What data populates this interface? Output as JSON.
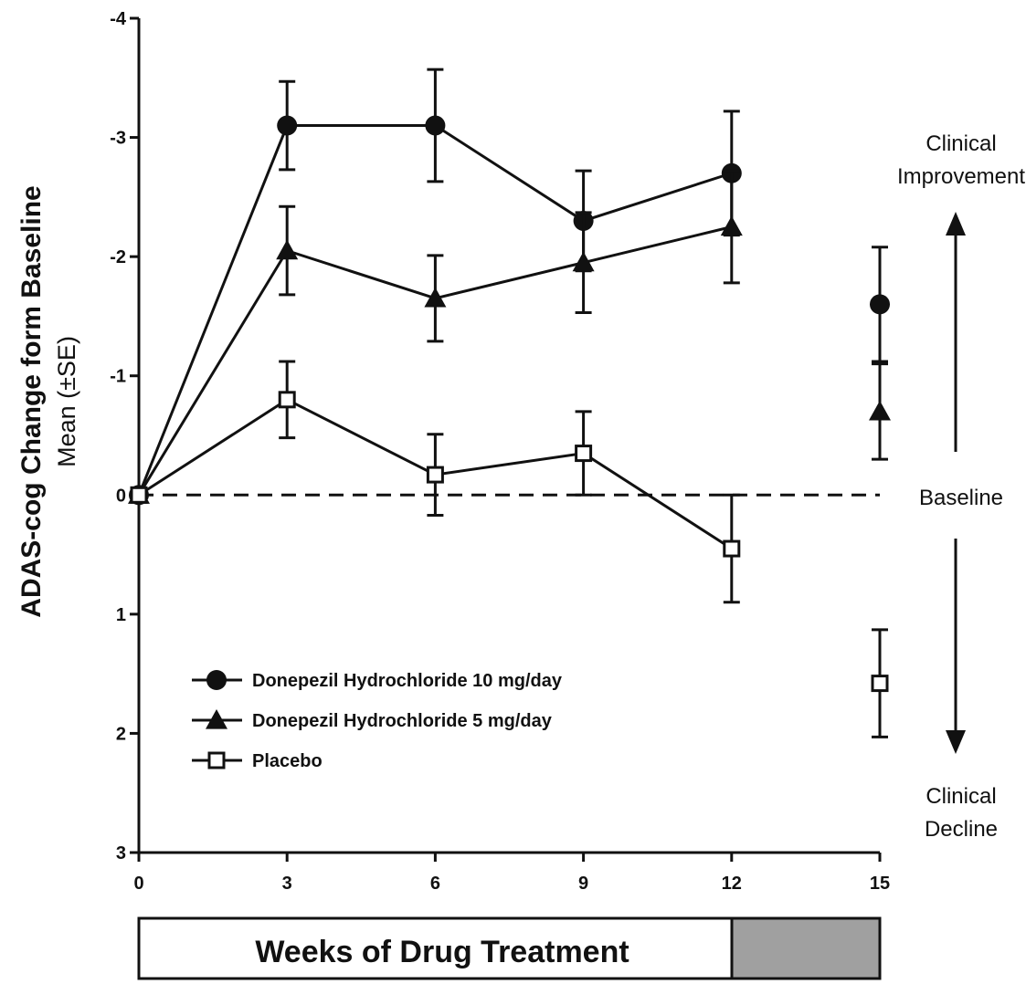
{
  "chart_data": {
    "type": "line",
    "title": "",
    "ylabel": "ADAS-cog Change form Baseline",
    "ylabel_sub": "Mean (±SE)",
    "xlabel": "Weeks of Drug Treatment",
    "x_ticks": [
      "0",
      "3",
      "6",
      "9",
      "12",
      "15"
    ],
    "y_ticks": [
      {
        "value": -4,
        "label": "-4"
      },
      {
        "value": -3,
        "label": "-3"
      },
      {
        "value": -2,
        "label": "-2"
      },
      {
        "value": -1,
        "label": "-1"
      },
      {
        "value": 0,
        "label": "0"
      },
      {
        "value": 1,
        "label": "1"
      },
      {
        "value": 2,
        "label": "2"
      },
      {
        "value": 3,
        "label": "3"
      }
    ],
    "xlim": [
      0,
      15
    ],
    "ylim": [
      -4,
      3
    ],
    "y_inverted": true,
    "grid": false,
    "legend_position": "lower-left",
    "series": [
      {
        "name": "Donepezil Hydrochloride 10 mg/day",
        "marker": "filled-circle",
        "points": [
          {
            "x": 0,
            "y": 0,
            "se": 0
          },
          {
            "x": 3,
            "y": -3.1,
            "se": 0.37
          },
          {
            "x": 6,
            "y": -3.1,
            "se": 0.47
          },
          {
            "x": 9,
            "y": -2.3,
            "se": 0.42
          },
          {
            "x": 12,
            "y": -2.7,
            "se": 0.52
          }
        ],
        "final": {
          "x": 15,
          "y": -1.6,
          "se": 0.48
        }
      },
      {
        "name": "Donepezil Hydrochloride 5 mg/day",
        "marker": "filled-triangle",
        "points": [
          {
            "x": 0,
            "y": 0,
            "se": 0
          },
          {
            "x": 3,
            "y": -2.05,
            "se": 0.37
          },
          {
            "x": 6,
            "y": -1.65,
            "se": 0.36
          },
          {
            "x": 9,
            "y": -1.95,
            "se": 0.42
          },
          {
            "x": 12,
            "y": -2.25,
            "se": 0.47
          }
        ],
        "final": {
          "x": 15,
          "y": -0.7,
          "se": 0.4
        }
      },
      {
        "name": "Placebo",
        "marker": "open-square",
        "points": [
          {
            "x": 0,
            "y": 0,
            "se": 0
          },
          {
            "x": 3,
            "y": -0.8,
            "se": 0.32
          },
          {
            "x": 6,
            "y": -0.17,
            "se": 0.34
          },
          {
            "x": 9,
            "y": -0.35,
            "se": 0.35
          },
          {
            "x": 12,
            "y": 0.45,
            "se": 0.45
          }
        ],
        "final": {
          "x": 15,
          "y": 1.58,
          "se": 0.45
        }
      }
    ],
    "baseline": {
      "y": 0,
      "style": "dashed"
    },
    "annotations": {
      "improvement": [
        "Clinical",
        "Improvement"
      ],
      "baseline": "Baseline",
      "decline": [
        "Clinical",
        "Decline"
      ]
    },
    "colors": {
      "line": "#111111",
      "shaded_period": "#a0a0a0",
      "background": "#ffffff"
    },
    "shaded_period": {
      "x_start": 12,
      "x_end": 15
    }
  }
}
